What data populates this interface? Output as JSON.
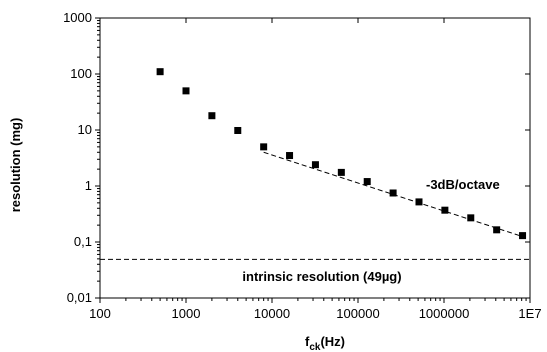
{
  "chart_data": {
    "type": "scatter",
    "title": "",
    "xlabel": {
      "main": "f",
      "sub": "ck",
      "unit": "(Hz)"
    },
    "ylabel": "resolution (mg)",
    "xscale": "log",
    "yscale": "log",
    "xlim": [
      100,
      10000000
    ],
    "ylim": [
      0.01,
      1000
    ],
    "x_ticks": [
      {
        "value": 100,
        "label": "100"
      },
      {
        "value": 1000,
        "label": "1000"
      },
      {
        "value": 10000,
        "label": "10000"
      },
      {
        "value": 100000,
        "label": "100000"
      },
      {
        "value": 1000000,
        "label": "1000000"
      },
      {
        "value": 10000000,
        "label": "1E7"
      }
    ],
    "y_ticks": [
      {
        "value": 0.01,
        "label": "0,01"
      },
      {
        "value": 0.1,
        "label": "0,1"
      },
      {
        "value": 1,
        "label": "1"
      },
      {
        "value": 10,
        "label": "10"
      },
      {
        "value": 100,
        "label": "100"
      },
      {
        "value": 1000,
        "label": "1000"
      }
    ],
    "grid": false,
    "series": [
      {
        "marker": "square",
        "color": "#000000",
        "x": [
          500,
          1000,
          2000,
          4000,
          8000,
          16000,
          32000,
          64000,
          128000,
          256000,
          512000,
          1024000,
          2048000,
          4096000,
          8192000
        ],
        "y": [
          110,
          50,
          18,
          9.8,
          5.0,
          3.5,
          2.4,
          1.75,
          1.2,
          0.75,
          0.52,
          0.37,
          0.27,
          0.165,
          0.13
        ]
      }
    ],
    "fit_line": {
      "style": "dashed",
      "x": [
        8000,
        8192000
      ],
      "y": [
        4.0,
        0.125
      ]
    },
    "reference_line": {
      "style": "dashed",
      "y": 0.049,
      "label": "intrinsic resolution (49µg)"
    },
    "annotations": [
      {
        "text": "-3dB/octave"
      }
    ]
  }
}
